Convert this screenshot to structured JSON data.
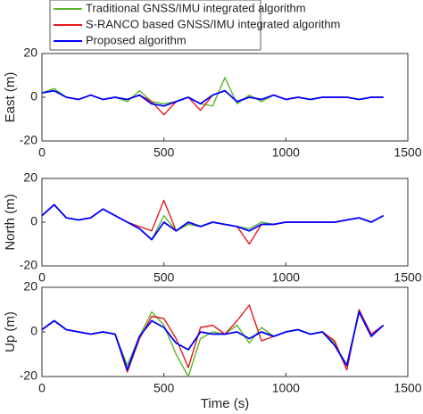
{
  "chart_data": [
    {
      "type": "line",
      "ylabel": "East (m)",
      "legend": "upper left",
      "x": [
        0,
        50,
        100,
        150,
        200,
        250,
        300,
        350,
        400,
        450,
        500,
        550,
        600,
        650,
        700,
        750,
        800,
        850,
        900,
        950,
        1000,
        1050,
        1100,
        1150,
        1200,
        1250,
        1300,
        1350,
        1400
      ],
      "xlim": [
        0,
        1500
      ],
      "xticks": [
        0,
        500,
        1000,
        1500
      ],
      "ylim": [
        -20,
        20
      ],
      "yticks": [
        -20,
        0,
        20
      ],
      "series": [
        {
          "name": "Traditional GNSS/IMU integrated algorithm",
          "color": "#5cb82c",
          "values": [
            2,
            4,
            0,
            -1,
            1,
            -1,
            0,
            -2,
            3,
            -2,
            -3,
            -2,
            0,
            -3,
            -4,
            9,
            -3,
            1,
            -2,
            1,
            -1,
            0,
            -1,
            0,
            0,
            0,
            -1,
            0,
            0
          ]
        },
        {
          "name": "S-RANCO based GNSS/IMU integrated algorithm",
          "color": "#e41a1c",
          "values": [
            2,
            3,
            0,
            -1,
            1,
            -1,
            0,
            -1,
            1,
            -2,
            -8,
            -2,
            0,
            -6,
            1,
            3,
            -2,
            0,
            -1,
            1,
            -1,
            0,
            -1,
            0,
            0,
            0,
            -1,
            0,
            0
          ]
        },
        {
          "name": "Proposed algorithm",
          "color": "#0000ff",
          "values": [
            2,
            3,
            0,
            -1,
            1,
            -1,
            0,
            -1,
            1,
            -3,
            -4,
            -2,
            0,
            -3,
            1,
            3,
            -2,
            0,
            -1,
            1,
            -1,
            0,
            -1,
            0,
            0,
            0,
            -1,
            0,
            0
          ]
        }
      ]
    },
    {
      "type": "line",
      "ylabel": "North (m)",
      "x": [
        0,
        50,
        100,
        150,
        200,
        250,
        300,
        350,
        400,
        450,
        500,
        550,
        600,
        650,
        700,
        750,
        800,
        850,
        900,
        950,
        1000,
        1050,
        1100,
        1150,
        1200,
        1250,
        1300,
        1350,
        1400
      ],
      "xlim": [
        0,
        1500
      ],
      "xticks": [
        0,
        500,
        1000,
        1500
      ],
      "ylim": [
        -20,
        20
      ],
      "yticks": [
        -20,
        0,
        20
      ],
      "series": [
        {
          "color": "#5cb82c",
          "values": [
            3,
            8,
            2,
            1,
            2,
            6,
            3,
            0,
            -3,
            -8,
            3,
            -4,
            -1,
            -2,
            0,
            -1,
            -2,
            -3,
            0,
            -1,
            0,
            0,
            0,
            0,
            0,
            1,
            2,
            0,
            3
          ]
        },
        {
          "color": "#e41a1c",
          "values": [
            3,
            8,
            2,
            1,
            2,
            6,
            3,
            0,
            -2,
            -4,
            10,
            -4,
            0,
            -2,
            0,
            -1,
            -2,
            -10,
            -1,
            -1,
            0,
            0,
            0,
            0,
            0,
            1,
            2,
            0,
            3
          ]
        },
        {
          "color": "#0000ff",
          "values": [
            3,
            8,
            2,
            1,
            2,
            6,
            3,
            0,
            -3,
            -8,
            0,
            -4,
            0,
            -2,
            0,
            -1,
            -2,
            -4,
            -1,
            -1,
            0,
            0,
            0,
            0,
            0,
            1,
            2,
            0,
            3
          ]
        }
      ]
    },
    {
      "type": "line",
      "ylabel": "Up (m)",
      "xlabel": "Time (s)",
      "x": [
        0,
        50,
        100,
        150,
        200,
        250,
        300,
        350,
        400,
        450,
        500,
        550,
        600,
        650,
        700,
        750,
        800,
        850,
        900,
        950,
        1000,
        1050,
        1100,
        1150,
        1200,
        1250,
        1300,
        1350,
        1400
      ],
      "xlim": [
        0,
        1500
      ],
      "xticks": [
        0,
        500,
        1000,
        1500
      ],
      "ylim": [
        -20,
        20
      ],
      "yticks": [
        -20,
        0,
        20
      ],
      "series": [
        {
          "color": "#5cb82c",
          "values": [
            1,
            5,
            1,
            0,
            -1,
            0,
            -1,
            -15,
            -2,
            9,
            3,
            -10,
            -20,
            -3,
            0,
            -1,
            3,
            -5,
            2,
            -2,
            0,
            1,
            -1,
            0,
            -5,
            -17,
            10,
            -2,
            3
          ]
        },
        {
          "color": "#e41a1c",
          "values": [
            1,
            5,
            1,
            0,
            -1,
            0,
            -1,
            -18,
            -3,
            7,
            6,
            -3,
            -16,
            2,
            3,
            -1,
            5,
            12,
            -4,
            -2,
            0,
            1,
            -1,
            0,
            -4,
            -17,
            10,
            -1,
            3
          ]
        },
        {
          "color": "#0000ff",
          "values": [
            1,
            5,
            1,
            0,
            -1,
            0,
            -1,
            -17,
            -2,
            5,
            2,
            -5,
            -8,
            0,
            -1,
            -1,
            0,
            -3,
            0,
            -2,
            0,
            1,
            -1,
            0,
            -6,
            -15,
            9,
            -2,
            3
          ]
        }
      ]
    }
  ]
}
